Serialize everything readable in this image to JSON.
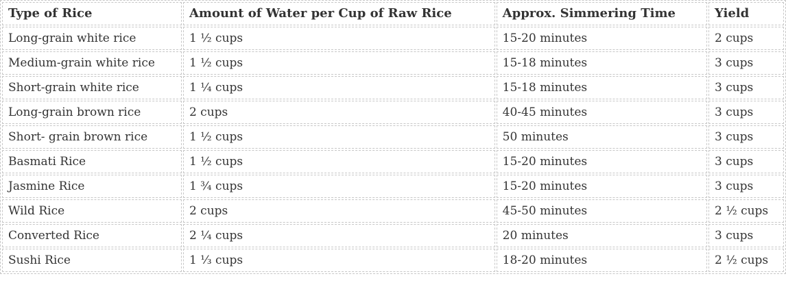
{
  "table": {
    "name": "rice-cooking-reference-table",
    "columns": [
      "Type of Rice",
      "Amount of Water per Cup of Raw Rice",
      "Approx. Simmering Time",
      "Yield"
    ],
    "rows": [
      [
        "Long-grain white rice",
        "1 ½ cups",
        "15-20 minutes",
        "2 cups"
      ],
      [
        "Medium-grain white rice",
        "1 ½ cups",
        "15-18 minutes",
        "3 cups"
      ],
      [
        "Short-grain white rice",
        "1 ¼ cups",
        "15-18 minutes",
        "3 cups"
      ],
      [
        "Long-grain brown rice",
        "2 cups",
        "40-45 minutes",
        "3 cups"
      ],
      [
        "Short- grain brown rice",
        "1 ½ cups",
        "50 minutes",
        "3 cups"
      ],
      [
        "Basmati Rice",
        "1 ½ cups",
        "15-20 minutes",
        "3 cups"
      ],
      [
        "Jasmine Rice",
        "1 ¾ cups",
        "15-20 minutes",
        "3 cups"
      ],
      [
        "Wild Rice",
        "2 cups",
        "45-50 minutes",
        "2 ½ cups"
      ],
      [
        "Converted Rice",
        "2 ¼ cups",
        "20 minutes",
        "3 cups"
      ],
      [
        "Sushi Rice",
        "1 ⅓ cups",
        "18-20 minutes",
        "2 ½ cups"
      ]
    ],
    "colors": {
      "border": "#c6c6c6",
      "text": "#333333",
      "background": "#ffffff"
    }
  }
}
